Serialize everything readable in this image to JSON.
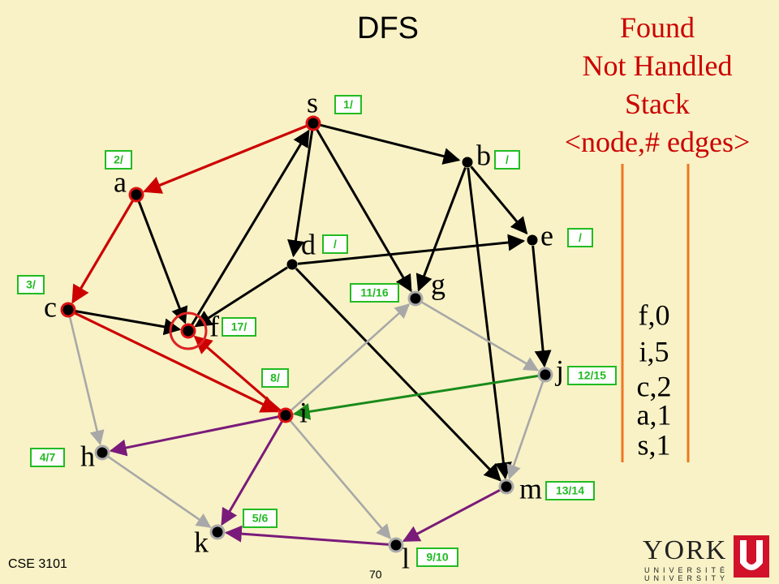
{
  "title": "DFS",
  "legend": {
    "line1": "Found",
    "line2": "Not Handled",
    "line3": "Stack",
    "line4": "<node,# edges>"
  },
  "stack": {
    "items": [
      "f,0",
      "i,5",
      "c,2",
      "a,1",
      "s,1"
    ]
  },
  "footer": {
    "course": "CSE 3101",
    "page": "70"
  },
  "logo": {
    "word": "YORK",
    "sub1": "UNIVERSITÉ",
    "sub2": "UNIVERSITY"
  },
  "colors": {
    "background": "#f8f2c6",
    "tree_edge": "#cc0000",
    "unexplored_edge": "#000000",
    "handled_edge": "#a8a8a8",
    "back_edge": "#7a1a7a",
    "cross_edge": "#1a8a1a",
    "label_box": "#22bb22",
    "stack_line": "#ee7722"
  },
  "nodes": [
    {
      "id": "s",
      "label": "s",
      "time": "1/",
      "state": "found"
    },
    {
      "id": "a",
      "label": "a",
      "time": "2/",
      "state": "found"
    },
    {
      "id": "b",
      "label": "b",
      "time": "/",
      "state": "unfound"
    },
    {
      "id": "e",
      "label": "e",
      "time": "/",
      "state": "unfound"
    },
    {
      "id": "d",
      "label": "d",
      "time": "/",
      "state": "unfound"
    },
    {
      "id": "g",
      "label": "g",
      "time": "11/16",
      "state": "handled"
    },
    {
      "id": "c",
      "label": "c",
      "time": "3/",
      "state": "found"
    },
    {
      "id": "f",
      "label": "f",
      "time": "17/",
      "state": "current"
    },
    {
      "id": "j",
      "label": "j",
      "time": "12/15",
      "state": "handled"
    },
    {
      "id": "i",
      "label": "i",
      "time": "8/",
      "state": "found"
    },
    {
      "id": "h",
      "label": "h",
      "time": "4/7",
      "state": "handled"
    },
    {
      "id": "m",
      "label": "m",
      "time": "13/14",
      "state": "handled"
    },
    {
      "id": "k",
      "label": "k",
      "time": "5/6",
      "state": "handled"
    },
    {
      "id": "l",
      "label": "l",
      "time": "9/10",
      "state": "handled"
    }
  ],
  "edges": [
    {
      "from": "s",
      "to": "a",
      "kind": "tree"
    },
    {
      "from": "a",
      "to": "c",
      "kind": "tree"
    },
    {
      "from": "c",
      "to": "i",
      "kind": "tree"
    },
    {
      "from": "i",
      "to": "f",
      "kind": "tree"
    },
    {
      "from": "s",
      "to": "b",
      "kind": "unexplored"
    },
    {
      "from": "s",
      "to": "d",
      "kind": "unexplored"
    },
    {
      "from": "s",
      "to": "g",
      "kind": "unexplored"
    },
    {
      "from": "a",
      "to": "f",
      "kind": "unexplored"
    },
    {
      "from": "c",
      "to": "f",
      "kind": "unexplored"
    },
    {
      "from": "f",
      "to": "s",
      "kind": "unexplored"
    },
    {
      "from": "d",
      "to": "f",
      "kind": "unexplored"
    },
    {
      "from": "d",
      "to": "e",
      "kind": "unexplored"
    },
    {
      "from": "d",
      "to": "m",
      "kind": "unexplored"
    },
    {
      "from": "b",
      "to": "e",
      "kind": "unexplored"
    },
    {
      "from": "b",
      "to": "g",
      "kind": "unexplored"
    },
    {
      "from": "b",
      "to": "m",
      "kind": "unexplored"
    },
    {
      "from": "e",
      "to": "j",
      "kind": "unexplored"
    },
    {
      "from": "c",
      "to": "h",
      "kind": "handled"
    },
    {
      "from": "h",
      "to": "k",
      "kind": "handled"
    },
    {
      "from": "i",
      "to": "g",
      "kind": "handled"
    },
    {
      "from": "i",
      "to": "l",
      "kind": "handled"
    },
    {
      "from": "g",
      "to": "j",
      "kind": "handled"
    },
    {
      "from": "j",
      "to": "m",
      "kind": "handled"
    },
    {
      "from": "i",
      "to": "h",
      "kind": "back"
    },
    {
      "from": "i",
      "to": "k",
      "kind": "back"
    },
    {
      "from": "m",
      "to": "l",
      "kind": "back"
    },
    {
      "from": "l",
      "to": "k",
      "kind": "back"
    },
    {
      "from": "j",
      "to": "i",
      "kind": "cross"
    }
  ]
}
